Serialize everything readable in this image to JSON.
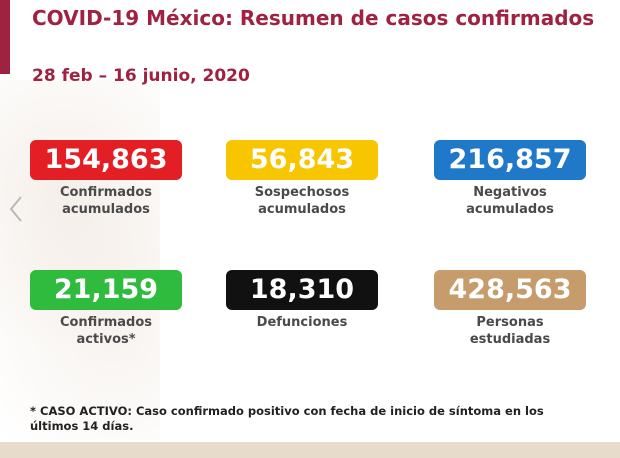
{
  "header": {
    "title": "COVID-19 México: Resumen de casos confirmados",
    "date_range": "28 feb – 16 junio, 2020"
  },
  "cards": [
    {
      "value": "154,863",
      "label_line1": "Confirmados",
      "label_line2": "acumulados",
      "color": "#e31e24"
    },
    {
      "value": "56,843",
      "label_line1": "Sospechosos",
      "label_line2": "acumulados",
      "color": "#f7c600"
    },
    {
      "value": "216,857",
      "label_line1": "Negativos",
      "label_line2": "acumulados",
      "color": "#1f78c8"
    },
    {
      "value": "21,159",
      "label_line1": "Confirmados",
      "label_line2": "activos*",
      "color": "#2ebb3e"
    },
    {
      "value": "18,310",
      "label_line1": "Defunciones",
      "label_line2": "",
      "color": "#111111"
    },
    {
      "value": "428,563",
      "label_line1": "Personas",
      "label_line2": "estudiadas",
      "color": "#c69c6d"
    }
  ],
  "footnote": {
    "line1": "* CASO ACTIVO: Caso confirmado positivo con fecha de inicio de síntoma en los",
    "line2": "últimos 14 días."
  },
  "nav": {
    "prev_icon": "chevron-left-icon"
  },
  "colors": {
    "accent": "#9f2241",
    "bottom_bar": "#e7dccb"
  }
}
